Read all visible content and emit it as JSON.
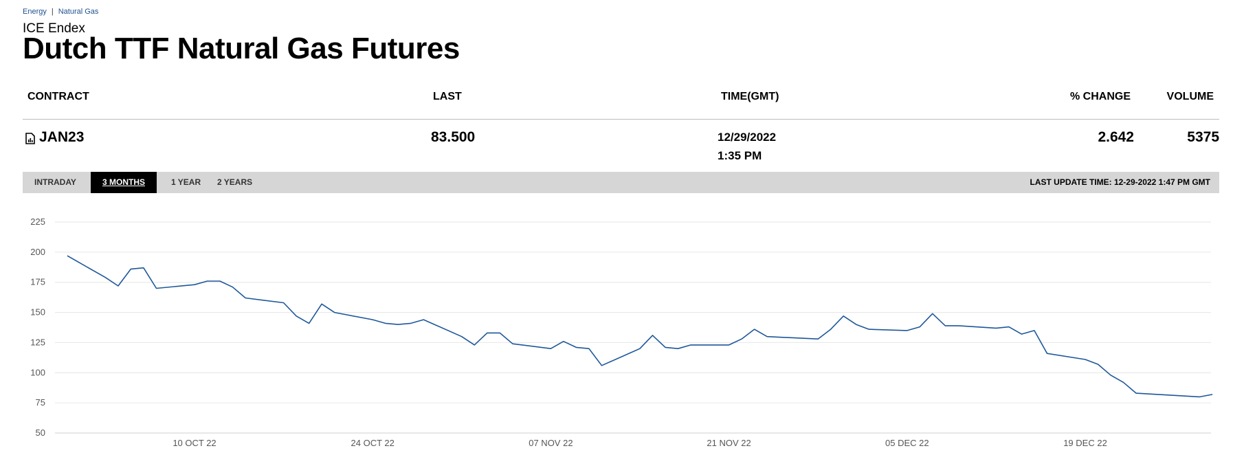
{
  "breadcrumb": {
    "items": [
      "Energy",
      "Natural Gas"
    ],
    "separator": "|"
  },
  "exchange": "ICE Endex",
  "page_title": "Dutch TTF Natural Gas Futures",
  "table": {
    "headers": {
      "contract": "CONTRACT",
      "last": "LAST",
      "time": "TIME(GMT)",
      "pct_change": "% CHANGE",
      "volume": "VOLUME"
    },
    "row": {
      "contract": "JAN23",
      "last": "83.500",
      "date": "12/29/2022",
      "time": "1:35 PM",
      "pct_change": "2.642",
      "volume": "5375"
    }
  },
  "toolbar": {
    "tabs": [
      "INTRADAY",
      "3 MONTHS",
      "1 YEAR",
      "2 YEARS"
    ],
    "active_tab": "3 MONTHS",
    "last_update": "LAST UPDATE TIME: 12-29-2022 1:47 PM GMT"
  },
  "colors": {
    "line": "#1d5799",
    "grid": "#e6e6e6",
    "toolbar_bg": "#d6d6d6",
    "link": "#1d4f91"
  },
  "icons": {
    "contract": "document-chart-icon"
  },
  "chart_data": {
    "type": "line",
    "title": "",
    "xlabel": "",
    "ylabel": "",
    "ylim": [
      50,
      225
    ],
    "yticks": [
      50,
      75,
      100,
      125,
      150,
      175,
      200,
      225
    ],
    "grid": true,
    "x_tick_labels": [
      "10 OCT 22",
      "24 OCT 22",
      "07 NOV 22",
      "21 NOV 22",
      "05 DEC 22",
      "19 DEC 22"
    ],
    "x_tick_dates": [
      "2022-10-10",
      "2022-10-24",
      "2022-11-07",
      "2022-11-21",
      "2022-12-05",
      "2022-12-19"
    ],
    "series": [
      {
        "name": "",
        "points": [
          [
            "2022-09-30",
            197
          ],
          [
            "2022-10-03",
            179
          ],
          [
            "2022-10-04",
            172
          ],
          [
            "2022-10-05",
            186
          ],
          [
            "2022-10-06",
            187
          ],
          [
            "2022-10-07",
            170
          ],
          [
            "2022-10-10",
            173
          ],
          [
            "2022-10-11",
            176
          ],
          [
            "2022-10-12",
            176
          ],
          [
            "2022-10-13",
            171
          ],
          [
            "2022-10-14",
            162
          ],
          [
            "2022-10-17",
            158
          ],
          [
            "2022-10-18",
            147
          ],
          [
            "2022-10-19",
            141
          ],
          [
            "2022-10-20",
            157
          ],
          [
            "2022-10-21",
            150
          ],
          [
            "2022-10-24",
            144
          ],
          [
            "2022-10-25",
            141
          ],
          [
            "2022-10-26",
            140
          ],
          [
            "2022-10-27",
            141
          ],
          [
            "2022-10-28",
            144
          ],
          [
            "2022-10-31",
            130
          ],
          [
            "2022-11-01",
            123
          ],
          [
            "2022-11-02",
            133
          ],
          [
            "2022-11-03",
            133
          ],
          [
            "2022-11-04",
            124
          ],
          [
            "2022-11-07",
            120
          ],
          [
            "2022-11-08",
            126
          ],
          [
            "2022-11-09",
            121
          ],
          [
            "2022-11-10",
            120
          ],
          [
            "2022-11-11",
            106
          ],
          [
            "2022-11-14",
            120
          ],
          [
            "2022-11-15",
            131
          ],
          [
            "2022-11-16",
            121
          ],
          [
            "2022-11-17",
            120
          ],
          [
            "2022-11-18",
            123
          ],
          [
            "2022-11-21",
            123
          ],
          [
            "2022-11-22",
            128
          ],
          [
            "2022-11-23",
            136
          ],
          [
            "2022-11-24",
            130
          ],
          [
            "2022-11-28",
            128
          ],
          [
            "2022-11-29",
            136
          ],
          [
            "2022-11-30",
            147
          ],
          [
            "2022-12-01",
            140
          ],
          [
            "2022-12-02",
            136
          ],
          [
            "2022-12-05",
            135
          ],
          [
            "2022-12-06",
            138
          ],
          [
            "2022-12-07",
            149
          ],
          [
            "2022-12-08",
            139
          ],
          [
            "2022-12-09",
            139
          ],
          [
            "2022-12-12",
            137
          ],
          [
            "2022-12-13",
            138
          ],
          [
            "2022-12-14",
            132
          ],
          [
            "2022-12-15",
            135
          ],
          [
            "2022-12-16",
            116
          ],
          [
            "2022-12-19",
            111
          ],
          [
            "2022-12-20",
            107
          ],
          [
            "2022-12-21",
            98
          ],
          [
            "2022-12-22",
            92
          ],
          [
            "2022-12-23",
            83
          ],
          [
            "2022-12-28",
            80
          ],
          [
            "2022-12-29",
            82
          ]
        ]
      }
    ]
  }
}
